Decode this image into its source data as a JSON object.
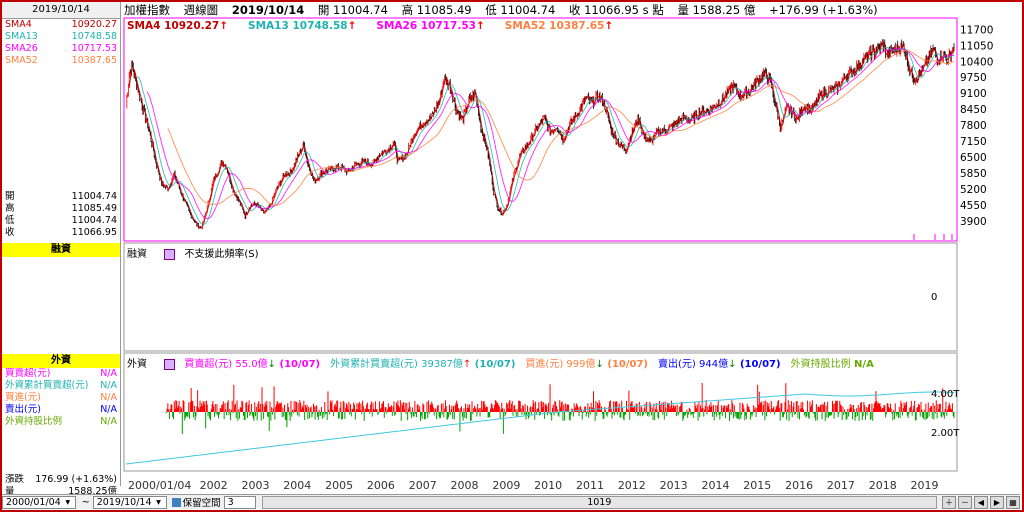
{
  "left": {
    "date": "2019/10/14",
    "smas": [
      {
        "name": "SMA4",
        "value": "10920.27",
        "color": "#c00000"
      },
      {
        "name": "SMA13",
        "value": "10748.58",
        "color": "#20b2b2"
      },
      {
        "name": "SMA26",
        "value": "10717.53",
        "color": "#ff00ff"
      },
      {
        "name": "SMA52",
        "value": "10387.65",
        "color": "#ff8040"
      }
    ],
    "ohlc": [
      {
        "label": "開",
        "value": "11004.74"
      },
      {
        "label": "高",
        "value": "11085.49"
      },
      {
        "label": "低",
        "value": "11004.74"
      },
      {
        "label": "收",
        "value": "11066.95"
      }
    ],
    "margin_title": "融資",
    "foreign_title": "外資",
    "foreign_items": [
      {
        "label": "買賣超(元)",
        "value": "N/A",
        "color": "#ff00ff"
      },
      {
        "label": "外資累計買賣超(元)",
        "value": "N/A",
        "color": "#20b2b2"
      },
      {
        "label": "買進(元)",
        "value": "N/A",
        "color": "#ff8040"
      },
      {
        "label": "賣出(元)",
        "value": "N/A",
        "color": "#0000ff"
      },
      {
        "label": "外資持股比例",
        "value": "N/A",
        "color": "#66aa00"
      }
    ],
    "change": {
      "label": "漲跌",
      "value": "176.99 (+1.63%)"
    },
    "volume": {
      "label": "量",
      "value": "1588.25億"
    }
  },
  "header": {
    "index_name": "加權指數",
    "chart_type": "週線圖",
    "date": "2019/10/14",
    "open": "開 11004.74",
    "high": "高 11085.49",
    "low": "低 11004.74",
    "close": "收 11066.95 s 點",
    "volume": "量 1588.25 億",
    "change": "+176.99 (+1.63%)"
  },
  "sma_legend": [
    {
      "text": "SMA4 10920.27",
      "color": "#c00000"
    },
    {
      "text": "SMA13 10748.58",
      "color": "#20b2b2"
    },
    {
      "text": "SMA26 10717.53",
      "color": "#ff00ff"
    },
    {
      "text": "SMA52 10387.65",
      "color": "#ff8040"
    }
  ],
  "margin_pane": {
    "label": "融資",
    "message": "不支援此頻率(S)",
    "zero_label": "0"
  },
  "foreign_pane": {
    "label": "外資",
    "items": [
      {
        "text": "買賣超(元) 55.0億",
        "date": "(10/07)",
        "dir": "down",
        "color": "#ff00ff"
      },
      {
        "text": "外資累計買賣超(元) 39387億",
        "date": "(10/07)",
        "dir": "up",
        "color": "#20b2b2"
      },
      {
        "text": "買進(元) 999億",
        "date": "(10/07)",
        "dir": "down",
        "color": "#ff8040"
      },
      {
        "text": "賣出(元) 944億",
        "date": "(10/07)",
        "dir": "down",
        "color": "#0000ff"
      },
      {
        "text": "外資持股比例",
        "date": "N/A",
        "dir": "none",
        "color": "#66aa00"
      }
    ],
    "y_labels": [
      "4.00T",
      "2.00T"
    ]
  },
  "statusbar": {
    "from_date": "2000/01/04",
    "to_date": "2019/10/14",
    "tilde": "~",
    "reserve_label": "保留空間",
    "reserve_value": "3",
    "scroll_value": "1019"
  },
  "chart_data": {
    "type": "line",
    "title": "加權指數 週線圖",
    "y_ticks": [
      11700,
      11050,
      10400,
      9750,
      9100,
      8450,
      7800,
      7150,
      6500,
      5850,
      5200,
      4550,
      3900
    ],
    "x_tick_labels": [
      "2000/01/04",
      "2002",
      "2003",
      "2004",
      "2005",
      "2006",
      "2007",
      "2008",
      "2009",
      "2010",
      "2011",
      "2012",
      "2013",
      "2014",
      "2015",
      "2016",
      "2017",
      "2018",
      "2019"
    ],
    "ylim": [
      3200,
      12000
    ],
    "series": [
      {
        "name": "SMA4",
        "color": "#c00000"
      },
      {
        "name": "SMA13",
        "color": "#20b2b2"
      },
      {
        "name": "SMA26",
        "color": "#ff00ff"
      },
      {
        "name": "SMA52",
        "color": "#ff8040"
      }
    ],
    "price_path": [
      [
        "2000.00",
        8600
      ],
      [
        "2000.08",
        9900
      ],
      [
        "2000.15",
        10200
      ],
      [
        "2000.25",
        9500
      ],
      [
        "2000.40",
        8500
      ],
      [
        "2000.55",
        7600
      ],
      [
        "2000.70",
        6400
      ],
      [
        "2000.85",
        5400
      ],
      [
        "2001.00",
        5200
      ],
      [
        "2001.15",
        5800
      ],
      [
        "2001.30",
        5100
      ],
      [
        "2001.50",
        4300
      ],
      [
        "2001.70",
        3700
      ],
      [
        "2001.80",
        3600
      ],
      [
        "2001.95",
        4500
      ],
      [
        "2002.10",
        5600
      ],
      [
        "2002.30",
        6300
      ],
      [
        "2002.40",
        6100
      ],
      [
        "2002.55",
        5200
      ],
      [
        "2002.70",
        4700
      ],
      [
        "2002.85",
        4100
      ],
      [
        "2002.95",
        4500
      ],
      [
        "2003.10",
        4600
      ],
      [
        "2003.30",
        4200
      ],
      [
        "2003.45",
        4500
      ],
      [
        "2003.60",
        5200
      ],
      [
        "2003.80",
        5800
      ],
      [
        "2003.95",
        5900
      ],
      [
        "2004.10",
        6500
      ],
      [
        "2004.25",
        7000
      ],
      [
        "2004.35",
        6200
      ],
      [
        "2004.50",
        5500
      ],
      [
        "2004.70",
        5900
      ],
      [
        "2004.90",
        6000
      ],
      [
        "2005.10",
        6100
      ],
      [
        "2005.30",
        5900
      ],
      [
        "2005.50",
        6200
      ],
      [
        "2005.70",
        6300
      ],
      [
        "2005.90",
        6200
      ],
      [
        "2006.05",
        6600
      ],
      [
        "2006.25",
        6800
      ],
      [
        "2006.40",
        7100
      ],
      [
        "2006.50",
        6300
      ],
      [
        "2006.70",
        6600
      ],
      [
        "2006.90",
        7500
      ],
      [
        "2007.10",
        7900
      ],
      [
        "2007.30",
        8100
      ],
      [
        "2007.50",
        8800
      ],
      [
        "2007.60",
        9700
      ],
      [
        "2007.75",
        9400
      ],
      [
        "2007.90",
        8400
      ],
      [
        "2008.05",
        8000
      ],
      [
        "2008.20",
        8800
      ],
      [
        "2008.35",
        9100
      ],
      [
        "2008.50",
        7600
      ],
      [
        "2008.65",
        6700
      ],
      [
        "2008.80",
        5000
      ],
      [
        "2008.90",
        4400
      ],
      [
        "2009.00",
        4200
      ],
      [
        "2009.10",
        4500
      ],
      [
        "2009.25",
        5600
      ],
      [
        "2009.40",
        6500
      ],
      [
        "2009.60",
        7000
      ],
      [
        "2009.80",
        7600
      ],
      [
        "2010.00",
        8100
      ],
      [
        "2010.15",
        7500
      ],
      [
        "2010.30",
        7800
      ],
      [
        "2010.45",
        7200
      ],
      [
        "2010.60",
        7800
      ],
      [
        "2010.80",
        8300
      ],
      [
        "2011.00",
        8900
      ],
      [
        "2011.15",
        8700
      ],
      [
        "2011.30",
        9000
      ],
      [
        "2011.45",
        8600
      ],
      [
        "2011.60",
        7600
      ],
      [
        "2011.80",
        7000
      ],
      [
        "2011.95",
        6800
      ],
      [
        "2012.10",
        7500
      ],
      [
        "2012.25",
        8100
      ],
      [
        "2012.40",
        7300
      ],
      [
        "2012.55",
        7100
      ],
      [
        "2012.70",
        7500
      ],
      [
        "2012.90",
        7600
      ],
      [
        "2013.10",
        7800
      ],
      [
        "2013.30",
        8100
      ],
      [
        "2013.50",
        8000
      ],
      [
        "2013.70",
        8300
      ],
      [
        "2013.90",
        8400
      ],
      [
        "2014.10",
        8600
      ],
      [
        "2014.30",
        8900
      ],
      [
        "2014.50",
        9400
      ],
      [
        "2014.70",
        9000
      ],
      [
        "2014.90",
        9200
      ],
      [
        "2015.10",
        9600
      ],
      [
        "2015.25",
        9900
      ],
      [
        "2015.40",
        9600
      ],
      [
        "2015.55",
        8500
      ],
      [
        "2015.65",
        7700
      ],
      [
        "2015.80",
        8500
      ],
      [
        "2015.95",
        8300
      ],
      [
        "2016.05",
        8000
      ],
      [
        "2016.20",
        8600
      ],
      [
        "2016.40",
        8400
      ],
      [
        "2016.60",
        9000
      ],
      [
        "2016.80",
        9200
      ],
      [
        "2017.00",
        9300
      ],
      [
        "2017.20",
        9800
      ],
      [
        "2017.40",
        10000
      ],
      [
        "2017.60",
        10400
      ],
      [
        "2017.80",
        10700
      ],
      [
        "2018.00",
        10900
      ],
      [
        "2018.10",
        11100
      ],
      [
        "2018.20",
        10700
      ],
      [
        "2018.40",
        10900
      ],
      [
        "2018.60",
        11000
      ],
      [
        "2018.75",
        10000
      ],
      [
        "2018.85",
        9700
      ],
      [
        "2018.95",
        9800
      ],
      [
        "2019.10",
        10200
      ],
      [
        "2019.30",
        10900
      ],
      [
        "2019.40",
        10500
      ],
      [
        "2019.50",
        10700
      ],
      [
        "2019.65",
        10500
      ],
      [
        "2019.80",
        11000
      ]
    ]
  }
}
